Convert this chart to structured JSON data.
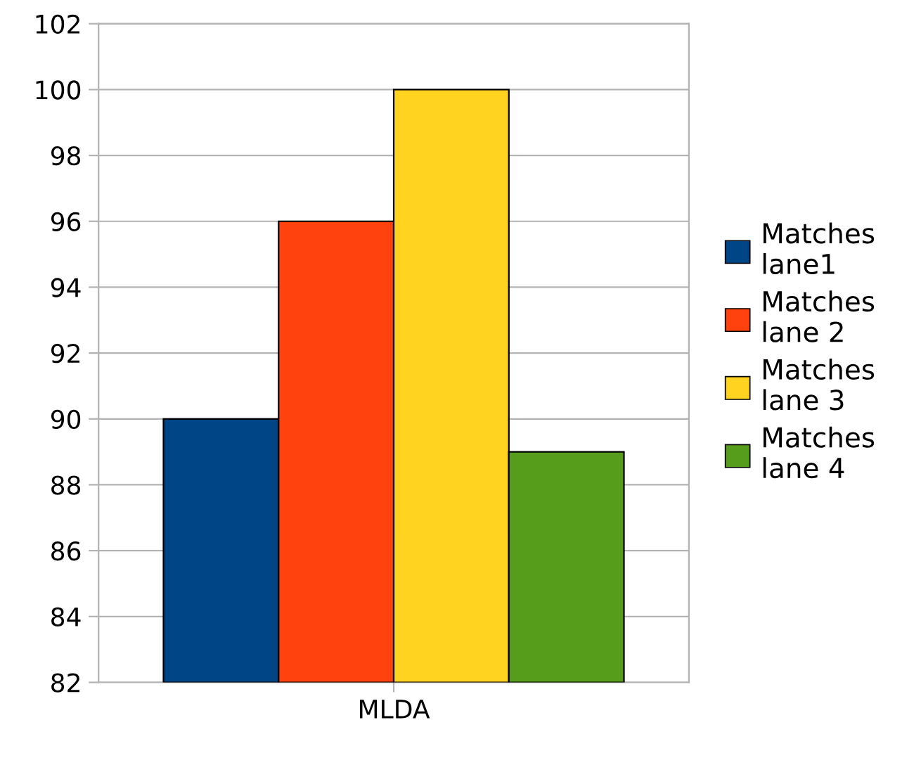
{
  "chart_data": {
    "type": "bar",
    "categories": [
      "MLDA"
    ],
    "series": [
      {
        "name": "Matches lane1",
        "color": "#004586",
        "values": [
          90
        ]
      },
      {
        "name": "Matches lane 2",
        "color": "#ff420e",
        "values": [
          96
        ]
      },
      {
        "name": "Matches lane 3",
        "color": "#ffd320",
        "values": [
          100
        ]
      },
      {
        "name": "Matches lane 4",
        "color": "#579d1c",
        "values": [
          89
        ]
      }
    ],
    "ylim": [
      82,
      102
    ],
    "yticks": [
      82,
      84,
      86,
      88,
      90,
      92,
      94,
      96,
      98,
      100,
      102
    ],
    "grid": "y",
    "legend": "right"
  }
}
